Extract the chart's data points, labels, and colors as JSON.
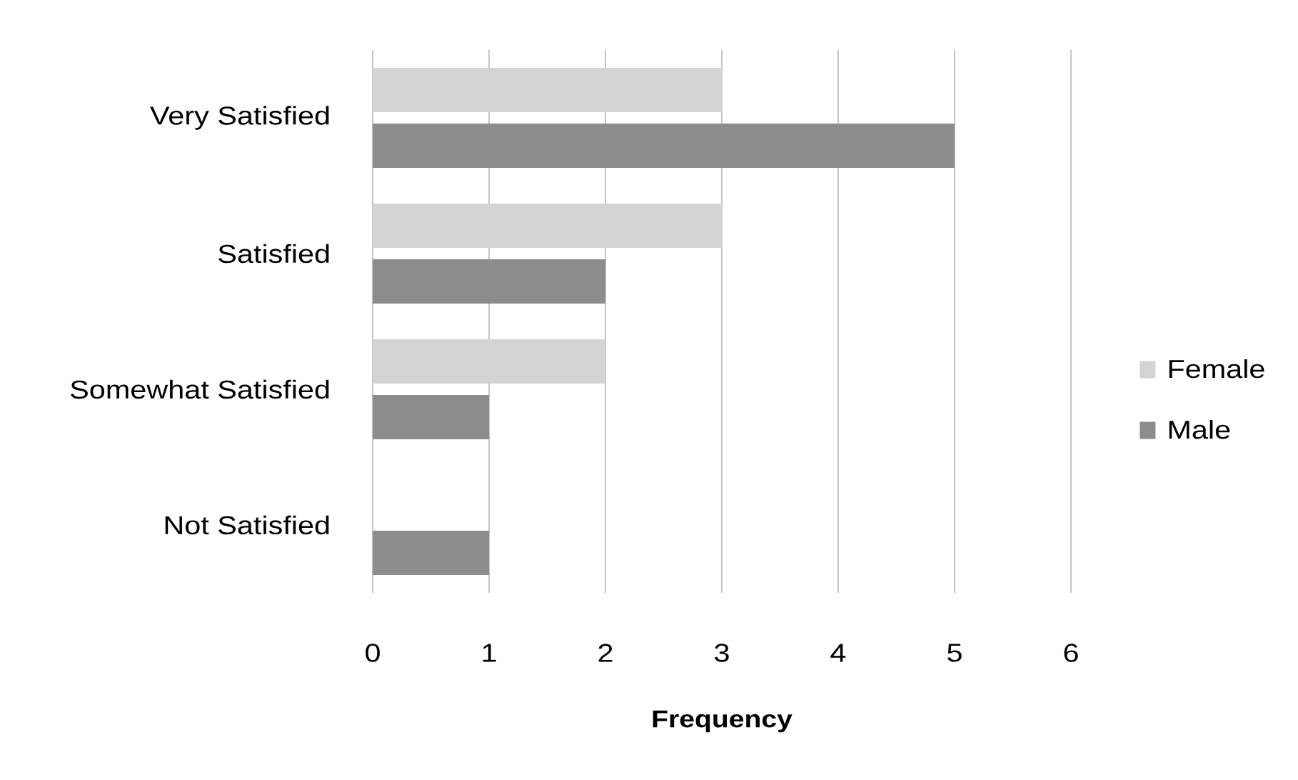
{
  "chart_data": {
    "type": "bar",
    "orientation": "horizontal",
    "xlabel": "Frequency",
    "categories": [
      "Very Satisfied",
      "Satisfied",
      "Somewhat Satisfied",
      "Not Satisfied"
    ],
    "series": [
      {
        "name": "Female",
        "color": "#d4d4d4",
        "values": [
          3,
          3,
          2,
          0
        ]
      },
      {
        "name": "Male",
        "color": "#8c8c8c",
        "values": [
          5,
          2,
          1,
          1
        ]
      }
    ],
    "xlim": [
      0,
      6
    ],
    "xticks": [
      0,
      1,
      2,
      3,
      4,
      5,
      6
    ],
    "grid": "x",
    "legend": "right"
  }
}
